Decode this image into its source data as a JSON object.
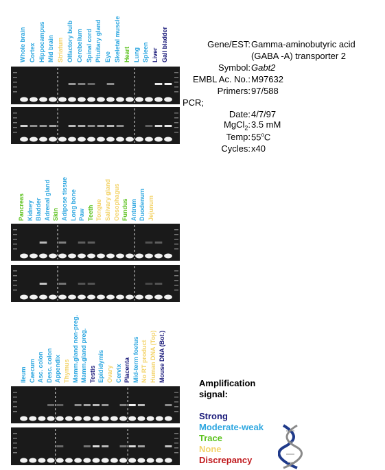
{
  "colors": {
    "strong": "#1a1a7a",
    "moderate": "#2ea7e0",
    "trace": "#5cc21e",
    "none": "#f3d36a",
    "discrepancy": "#c0191d",
    "gel": "#1a1a1a"
  },
  "panel1": {
    "labels": [
      {
        "t": "Whole brain",
        "c": "moderate"
      },
      {
        "t": "Cortex",
        "c": "moderate"
      },
      {
        "t": "Hippocampus",
        "c": "moderate"
      },
      {
        "t": "Mid brain",
        "c": "moderate"
      },
      {
        "t": "Striatum",
        "c": "none"
      },
      {
        "t": "Olfactory bulb",
        "c": "moderate"
      },
      {
        "t": "Cerebellum",
        "c": "moderate"
      },
      {
        "t": "Spinal cord",
        "c": "moderate"
      },
      {
        "t": "Pituitary gland",
        "c": "moderate"
      },
      {
        "t": "Eye",
        "c": "moderate"
      },
      {
        "t": "Skeletal muscle",
        "c": "moderate"
      },
      {
        "t": "Heart",
        "c": "trace"
      },
      {
        "t": "Lung",
        "c": "moderate"
      },
      {
        "t": "Spleen",
        "c": "moderate"
      },
      {
        "t": "Liver",
        "c": "strong"
      },
      {
        "t": "Gall bladder",
        "c": "strong"
      }
    ]
  },
  "panel2": {
    "labels": [
      {
        "t": "Pancreas",
        "c": "trace"
      },
      {
        "t": "Kidney",
        "c": "moderate"
      },
      {
        "t": "Bladder",
        "c": "moderate"
      },
      {
        "t": "Adrenal gland",
        "c": "moderate"
      },
      {
        "t": "Skin",
        "c": "trace"
      },
      {
        "t": "Adipose tissue",
        "c": "moderate"
      },
      {
        "t": "Long bone",
        "c": "moderate"
      },
      {
        "t": "Paw",
        "c": "moderate"
      },
      {
        "t": "Teeth",
        "c": "trace"
      },
      {
        "t": "Tongue",
        "c": "none"
      },
      {
        "t": "Salivary gland",
        "c": "none"
      },
      {
        "t": "Oesophagus",
        "c": "none"
      },
      {
        "t": "Fundus",
        "c": "trace"
      },
      {
        "t": "Antrum",
        "c": "moderate"
      },
      {
        "t": "Duodenum",
        "c": "moderate"
      },
      {
        "t": "Jejunum",
        "c": "none"
      }
    ]
  },
  "panel3": {
    "labels": [
      {
        "t": "Ileum",
        "c": "moderate"
      },
      {
        "t": "Caecum",
        "c": "moderate"
      },
      {
        "t": "Asc. colon",
        "c": "moderate"
      },
      {
        "t": "Desc. colon",
        "c": "moderate"
      },
      {
        "t": "Appendix",
        "c": "moderate"
      },
      {
        "t": "Thymus",
        "c": "none"
      },
      {
        "t": "Mamm.gland non-preg.",
        "c": "moderate"
      },
      {
        "t": "Mamm.gland preg.",
        "c": "moderate"
      },
      {
        "t": "Testis",
        "c": "strong"
      },
      {
        "t": "Epididymis",
        "c": "moderate"
      },
      {
        "t": "Ovary",
        "c": "none"
      },
      {
        "t": "Cervix",
        "c": "moderate"
      },
      {
        "t": "Placenta",
        "c": "strong"
      },
      {
        "t": "Mid-term foetus",
        "c": "moderate"
      },
      {
        "t": "No RT product",
        "c": "none"
      },
      {
        "t": "Human DNA (Top)",
        "c": "none"
      },
      {
        "t": "Mouse DNA (Bot.)",
        "c": "strong"
      }
    ]
  },
  "info": {
    "gene_key": "Gene/EST:",
    "gene_val1": "Gamma-aminobutyric acid",
    "gene_val2": "(GABA -A) transporter 2",
    "symbol_key": "Symbol:",
    "symbol_val": "Gabt2",
    "embl_key": "EMBL Ac. No.:",
    "embl_val": "M97632",
    "primers_key": "Primers:",
    "primers_val": "97/588",
    "pcr": "PCR;",
    "date_key": "Date:",
    "date_val": "4/7/97",
    "mg_key": "MgCl",
    "mg_sub": "2",
    "mg_sep": ":",
    "mg_val": "3.5 mM",
    "temp_key": "Temp:",
    "temp_val": "55",
    "temp_deg": "o",
    "temp_unit": "C",
    "cycles_key": "Cycles:",
    "cycles_val": "x40"
  },
  "legend": {
    "title1": "Amplification",
    "title2": "signal:",
    "strong": "Strong",
    "moderate": "Moderate-weak",
    "trace": "Trace",
    "none": "None",
    "discrepancy": "Discrepancy"
  }
}
